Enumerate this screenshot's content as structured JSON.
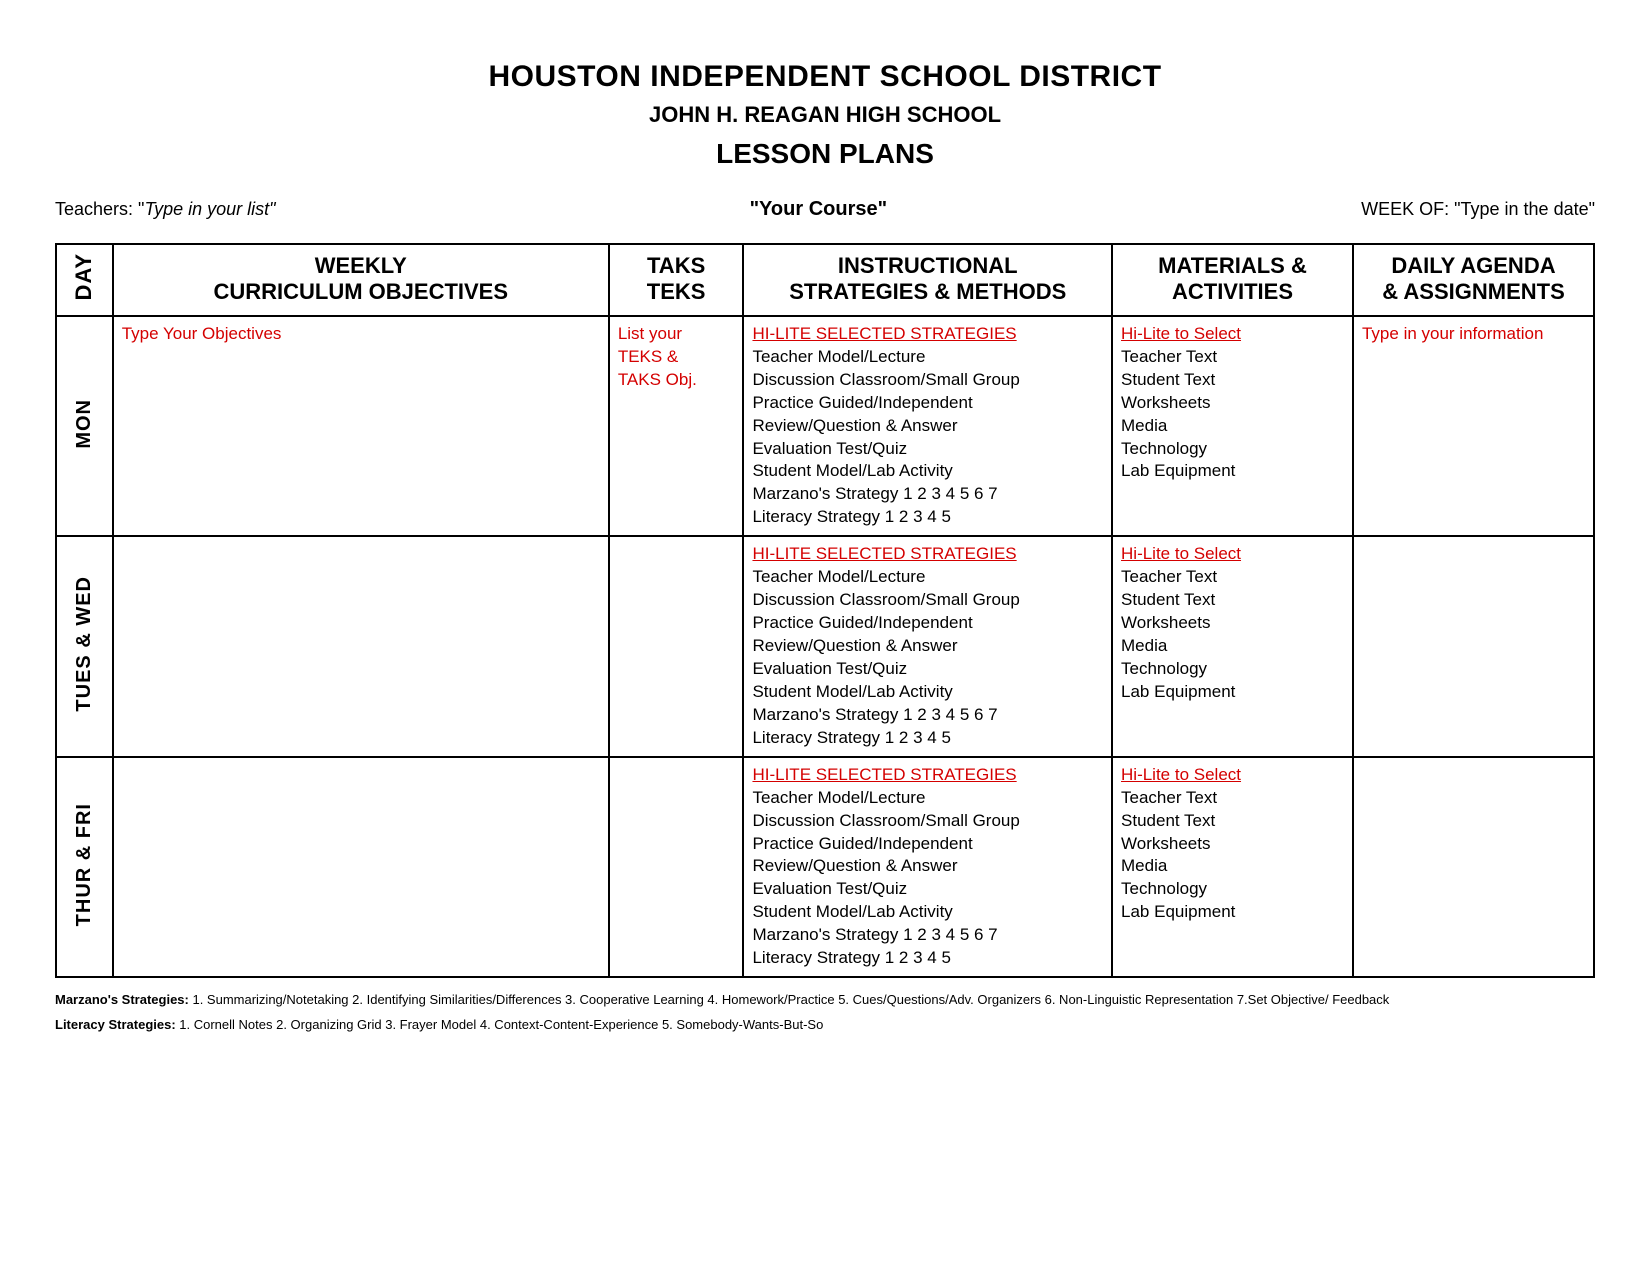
{
  "header": {
    "district": "HOUSTON INDEPENDENT SCHOOL DISTRICT",
    "school": "JOHN H. REAGAN HIGH SCHOOL",
    "title": "LESSON PLANS"
  },
  "subhead": {
    "teachers_label": "Teachers: \"",
    "teachers_value": "Type in your list\"",
    "course": "\"Your Course\"",
    "week_label": "WEEK OF: ",
    "week_value": "\"Type in the date\""
  },
  "columns": {
    "day": "DAY",
    "objectives_line1": "WEEKLY",
    "objectives_line2": "CURRICULUM OBJECTIVES",
    "taks_line1": "TAKS",
    "taks_line2": "TEKS",
    "strategies_line1": "INSTRUCTIONAL",
    "strategies_line2": "STRATEGIES & METHODS",
    "materials_line1": "MATERIALS &",
    "materials_line2": "ACTIVITIES",
    "agenda_line1": "DAILY AGENDA",
    "agenda_line2": "& ASSIGNMENTS"
  },
  "placeholder": {
    "objectives": "Type Your Objectives",
    "taks_line1": "List your",
    "taks_line2": "TEKS &",
    "taks_line3": "TAKS Obj.",
    "agenda": "Type in your information"
  },
  "strategies": {
    "heading": "HI-LITE SELECTED STRATEGIES",
    "s0": "Teacher Model/Lecture",
    "s1": "Discussion Classroom/Small Group",
    "s2": "Practice Guided/Independent",
    "s3": "Review/Question & Answer",
    "s4": "Evaluation Test/Quiz",
    "s5": "Student Model/Lab Activity",
    "s6": "Marzano's Strategy  1  2  3  4  5  6  7",
    "s7": "Literacy Strategy  1  2  3  4  5"
  },
  "materials": {
    "heading": "Hi-Lite to Select",
    "m0": "Teacher Text",
    "m1": "Student Text",
    "m2": "Worksheets",
    "m3": "Media",
    "m4": "Technology",
    "m5": "Lab Equipment"
  },
  "days": {
    "d0": "MON",
    "d1": "TUES & WED",
    "d2": "THUR & FRI"
  },
  "footer": {
    "marzano_label": "Marzano's Strategies:",
    "marzano_text": " 1. Summarizing/Notetaking  2. Identifying Similarities/Differences  3. Cooperative Learning  4. Homework/Practice  5. Cues/Questions/Adv. Organizers  6. Non-Linguistic Representation  7.Set Objective/ Feedback",
    "literacy_label": "Literacy Strategies:",
    "literacy_text": "  1. Cornell Notes  2. Organizing Grid  3. Frayer Model  4.  Context-Content-Experience  5. Somebody-Wants-But-So"
  }
}
